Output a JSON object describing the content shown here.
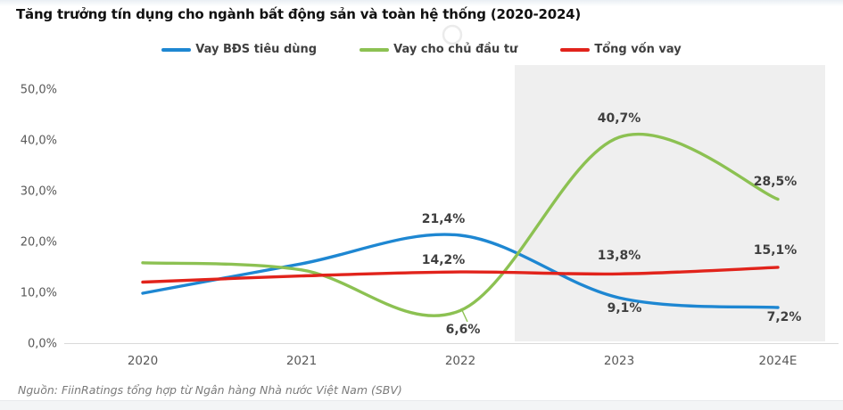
{
  "title": "Tăng trưởng tín dụng cho ngành bất động sản và toàn hệ thống (2020-2024)",
  "source": "Nguồn: FiinRatings tổng hợp từ Ngân hàng Nhà nước Việt Nam (SBV)",
  "colors": {
    "blue": "#1e87d2",
    "green": "#8cc152",
    "red": "#e1231b",
    "forecast_shade": "#efefef",
    "axis_line": "#d9d9d9",
    "label_text": "#3f3f3f"
  },
  "legend": [
    {
      "label": "Vay BĐS tiêu dùng",
      "color": "#1e87d2"
    },
    {
      "label": "Vay cho chủ đầu tư",
      "color": "#8cc152"
    },
    {
      "label": "Tổng vốn vay",
      "color": "#e1231b"
    }
  ],
  "chart_data": {
    "type": "line",
    "title": "Tăng trưởng tín dụng cho ngành bất động sản và toàn hệ thống (2020-2024)",
    "x": [
      "2020",
      "2021",
      "2022",
      "2023",
      "2024E"
    ],
    "series": [
      {
        "name": "Vay BĐS tiêu dùng",
        "color": "#1e87d2",
        "values": [
          10.0,
          15.8,
          21.4,
          9.1,
          7.2
        ]
      },
      {
        "name": "Vay cho chủ đầu tư",
        "color": "#8cc152",
        "values": [
          16.0,
          14.6,
          6.6,
          40.7,
          28.5
        ]
      },
      {
        "name": "Tổng vốn vay",
        "color": "#e1231b",
        "values": [
          12.2,
          13.4,
          14.2,
          13.8,
          15.1
        ]
      }
    ],
    "data_labels": [
      {
        "series": 0,
        "x_index": 2,
        "text": "21,4%"
      },
      {
        "series": 0,
        "x_index": 3,
        "text": "9,1%"
      },
      {
        "series": 0,
        "x_index": 4,
        "text": "7,2%"
      },
      {
        "series": 1,
        "x_index": 2,
        "text": "6,6%"
      },
      {
        "series": 1,
        "x_index": 3,
        "text": "40,7%"
      },
      {
        "series": 1,
        "x_index": 4,
        "text": "28,5%"
      },
      {
        "series": 2,
        "x_index": 2,
        "text": "14,2%"
      },
      {
        "series": 2,
        "x_index": 3,
        "text": "13,8%"
      },
      {
        "series": 2,
        "x_index": 4,
        "text": "15,1%"
      }
    ],
    "yticks": [
      {
        "label": "50,0%",
        "value": 50
      },
      {
        "label": "40,0%",
        "value": 40
      },
      {
        "label": "30,0%",
        "value": 30
      },
      {
        "label": "20,0%",
        "value": 20
      },
      {
        "label": "10,0%",
        "value": 10
      },
      {
        "label": "0,0%",
        "value": 0
      }
    ],
    "ylim": [
      0,
      50
    ],
    "grid": false,
    "legend_position": "top",
    "line_style": "smooth",
    "forecast_region": {
      "from_x_label": "2022",
      "note": "shaded gray band over 2022.3–2024E"
    }
  }
}
